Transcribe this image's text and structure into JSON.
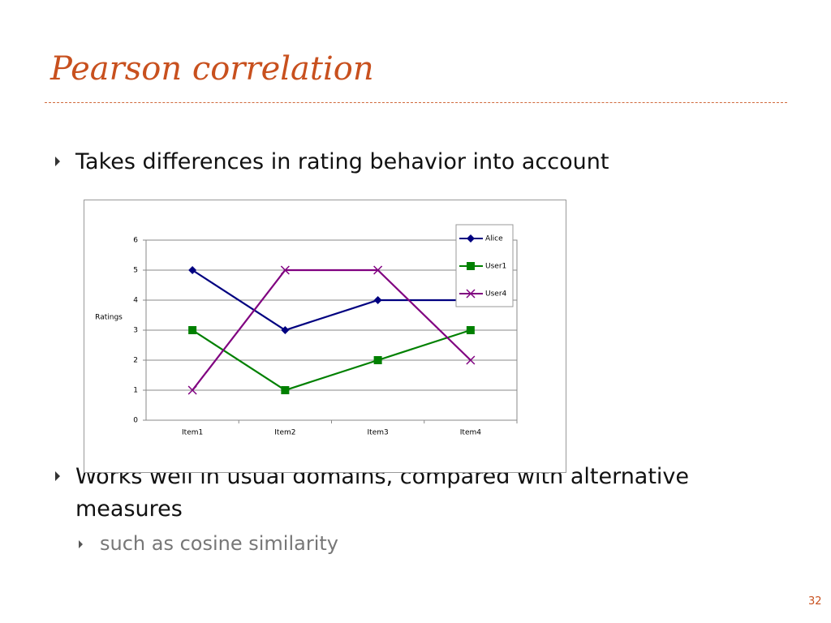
{
  "slide": {
    "title": "Pearson correlation",
    "bullets": [
      "Takes differences in rating behavior into account",
      "Works well in usual domains, compared with alternative measures"
    ],
    "sub_bullets": [
      "such as cosine similarity"
    ],
    "page_number": "32"
  },
  "chart_data": {
    "type": "line",
    "y_label": "Ratings",
    "categories": [
      "Item1",
      "Item2",
      "Item3",
      "Item4"
    ],
    "series": [
      {
        "name": "Alice",
        "color": "#000080",
        "marker": "diamond",
        "values": [
          5,
          3,
          4,
          4
        ]
      },
      {
        "name": "User1",
        "color": "#008000",
        "marker": "square",
        "values": [
          3,
          1,
          2,
          3
        ]
      },
      {
        "name": "User4",
        "color": "#800080",
        "marker": "x",
        "values": [
          1,
          5,
          5,
          2
        ]
      }
    ],
    "ylim": [
      0,
      6
    ],
    "yticks": [
      0,
      1,
      2,
      3,
      4,
      5,
      6
    ],
    "grid": true,
    "legend": "right"
  }
}
